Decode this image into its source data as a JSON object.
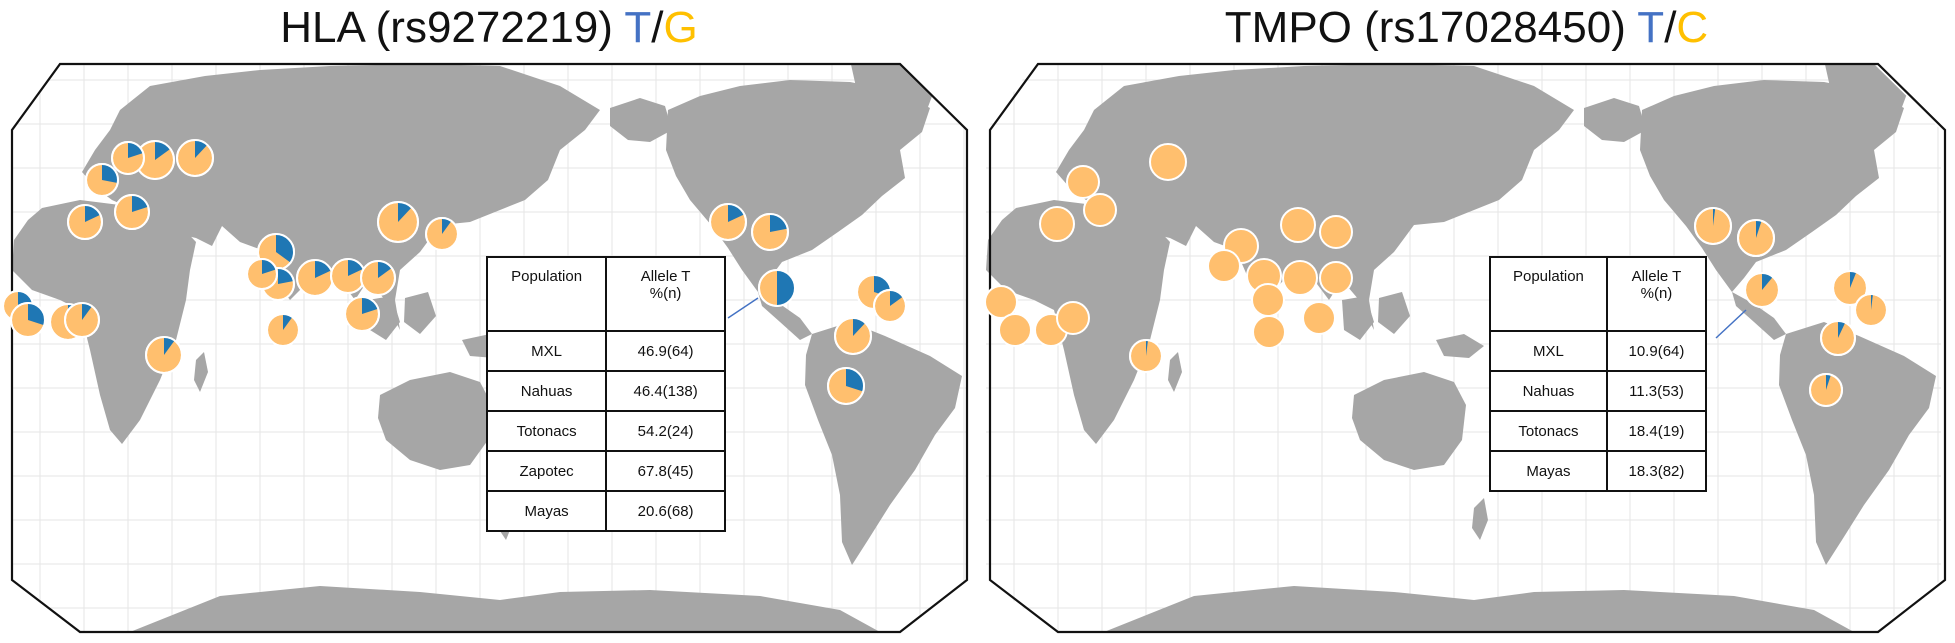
{
  "colors": {
    "land": "#a6a6a6",
    "ocean": "#ffffff",
    "graticule": "#e6e6e6",
    "frame": "#111111",
    "allele_t": "#1f77b4",
    "allele_other": "#ffbf6e",
    "pie_border": "#ffffff",
    "title_t": "#4472c4",
    "title_other": "#ffc000"
  },
  "panels": [
    {
      "title": "HLA (rs9272219)",
      "allele_a": "T",
      "sep": "/",
      "allele_b": "G",
      "table": {
        "header_population": "Population",
        "header_allele_line1": "Allele T",
        "header_allele_line2": "%(n)",
        "rows": [
          {
            "population": "MXL",
            "value": "46.9(64)"
          },
          {
            "population": "Nahuas",
            "value": "46.4(138)"
          },
          {
            "population": "Totonacs",
            "value": "54.2(24)"
          },
          {
            "population": "Zapotec",
            "value": "67.8(45)"
          },
          {
            "population": "Mayas",
            "value": "20.6(68)"
          }
        ]
      }
    },
    {
      "title": "TMPO (rs17028450)",
      "allele_a": "T",
      "sep": "/",
      "allele_b": "C",
      "table": {
        "header_population": "Population",
        "header_allele_line1": "Allele T",
        "header_allele_line2": "%(n)",
        "rows": [
          {
            "population": "MXL",
            "value": "10.9(64)"
          },
          {
            "population": "Nahuas",
            "value": "11.3(53)"
          },
          {
            "population": "Totonacs",
            "value": "18.4(19)"
          },
          {
            "population": "Mayas",
            "value": "18.3(82)"
          }
        ]
      }
    }
  ]
}
